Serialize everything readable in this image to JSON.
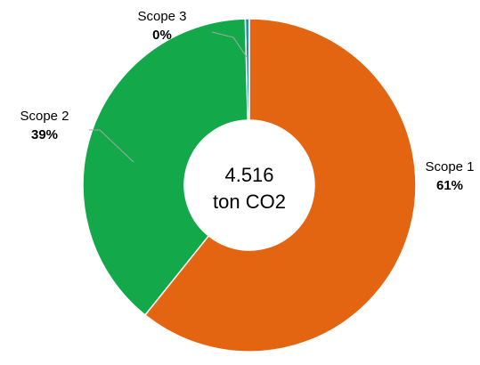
{
  "chart_data": {
    "type": "donut",
    "categories": [
      "Scope 1",
      "Scope 2",
      "Scope 3"
    ],
    "values": [
      61,
      39,
      0.4
    ],
    "value_labels": [
      "61%",
      "39%",
      "0%"
    ],
    "colors": [
      "#e46511",
      "#13a84a",
      "#2a8fa6"
    ],
    "center_text": [
      "4.516",
      "ton CO2"
    ]
  }
}
